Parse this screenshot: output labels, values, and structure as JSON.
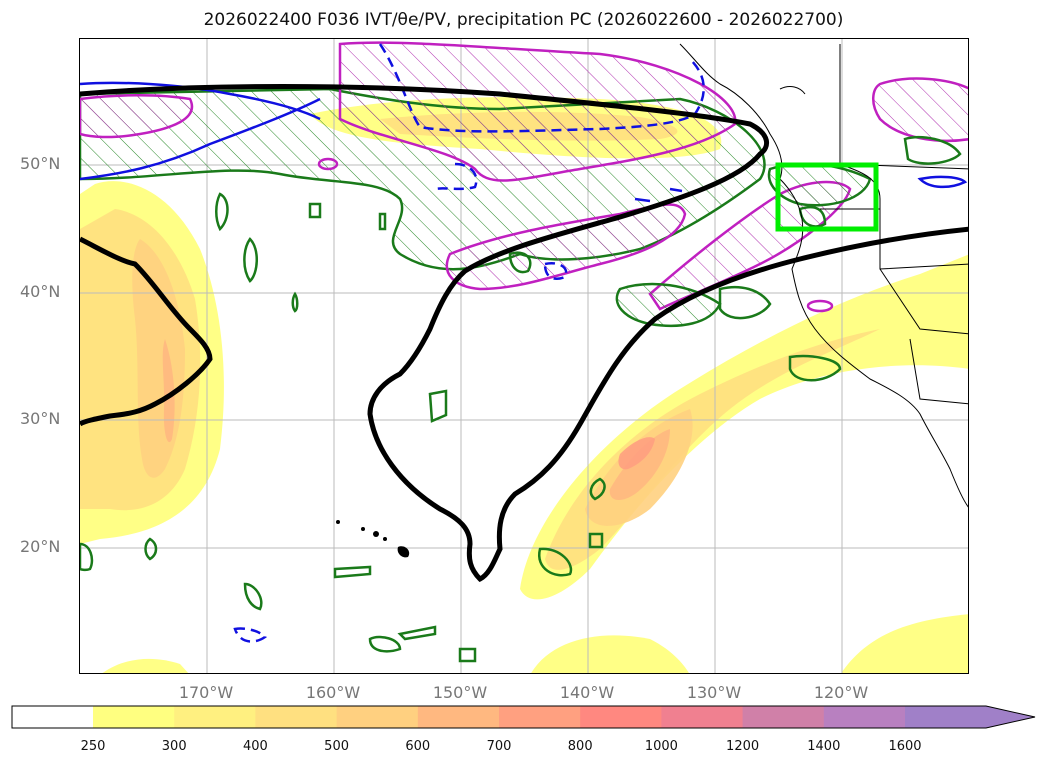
{
  "title": "2026022400 F036 IVT/θe/PV, precipitation PC (2026022600 - 2026022700)",
  "map": {
    "lat_labels": [
      "50°N",
      "40°N",
      "30°N",
      "20°N"
    ],
    "lon_labels": [
      "170°W",
      "160°W",
      "150°W",
      "140°W",
      "130°W",
      "120°W"
    ]
  },
  "colorbar": {
    "ticks": [
      "250",
      "300",
      "400",
      "500",
      "600",
      "700",
      "800",
      "1000",
      "1200",
      "1400",
      "1600"
    ],
    "colors": [
      "#ffff80",
      "#fff080",
      "#ffe080",
      "#ffd080",
      "#ffb880",
      "#ffa080",
      "#ff8880",
      "#f08090",
      "#d080a8",
      "#b880c0",
      "#a080c8"
    ],
    "extend": "max"
  },
  "highlight_box_color": "#00ee00"
}
